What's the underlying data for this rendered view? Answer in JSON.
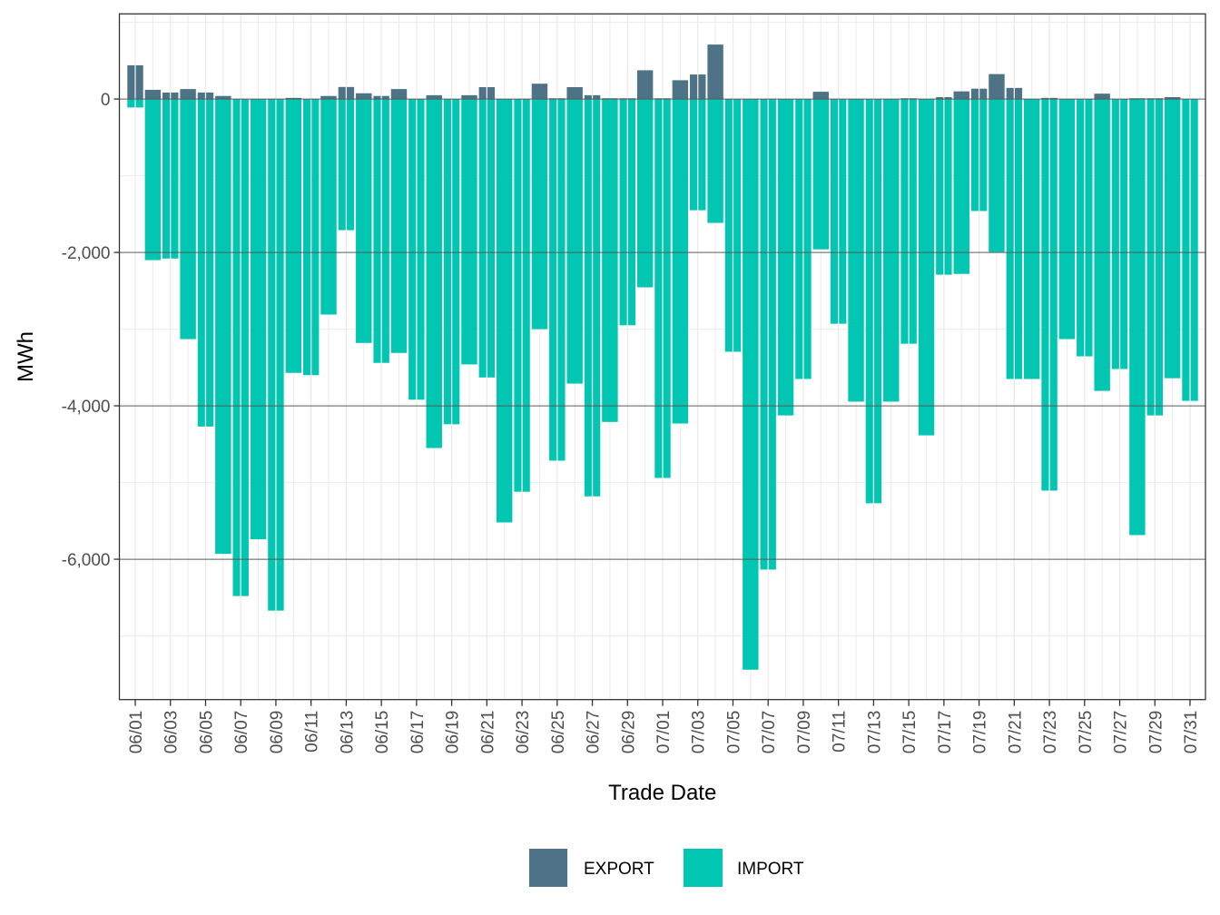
{
  "chart_data": {
    "type": "bar",
    "stacked": "diverging",
    "title": "",
    "xlabel": "Trade Date",
    "ylabel": "MWh",
    "ylim": [
      -7830,
      1110
    ],
    "yticks": [
      0,
      -2000,
      -4000,
      -6000
    ],
    "ytick_labels": [
      "0",
      "-2,000",
      "-4,000",
      "-6,000"
    ],
    "grid": true,
    "legend_position": "bottom",
    "categories": [
      "06/01",
      "06/02",
      "06/03",
      "06/04",
      "06/05",
      "06/06",
      "06/07",
      "06/08",
      "06/09",
      "06/10",
      "06/11",
      "06/12",
      "06/13",
      "06/14",
      "06/15",
      "06/16",
      "06/17",
      "06/18",
      "06/19",
      "06/20",
      "06/21",
      "06/22",
      "06/23",
      "06/24",
      "06/25",
      "06/26",
      "06/27",
      "06/28",
      "06/29",
      "06/30",
      "07/01",
      "07/02",
      "07/03",
      "07/04",
      "07/05",
      "07/06",
      "07/07",
      "07/08",
      "07/09",
      "07/10",
      "07/11",
      "07/12",
      "07/13",
      "07/14",
      "07/15",
      "07/16",
      "07/17",
      "07/18",
      "07/19",
      "07/20",
      "07/21",
      "07/22",
      "07/23",
      "07/24",
      "07/25",
      "07/26",
      "07/27",
      "07/28",
      "07/29",
      "07/30",
      "07/31"
    ],
    "xtick_labels": [
      "06/01",
      "06/03",
      "06/05",
      "06/07",
      "06/09",
      "06/11",
      "06/13",
      "06/15",
      "06/17",
      "06/19",
      "06/21",
      "06/23",
      "06/25",
      "06/27",
      "06/29",
      "07/01",
      "07/03",
      "07/05",
      "07/07",
      "07/09",
      "07/11",
      "07/13",
      "07/15",
      "07/17",
      "07/19",
      "07/21",
      "07/23",
      "07/25",
      "07/27",
      "07/29",
      "07/31"
    ],
    "series": [
      {
        "name": "EXPORT",
        "color": "#4e7386",
        "values": [
          440,
          120,
          85,
          130,
          85,
          40,
          0,
          0,
          0,
          15,
          0,
          40,
          157,
          75,
          40,
          130,
          0,
          50,
          0,
          50,
          155,
          0,
          0,
          200,
          10,
          155,
          50,
          10,
          10,
          375,
          10,
          245,
          320,
          710,
          0,
          0,
          0,
          0,
          0,
          95,
          0,
          0,
          0,
          0,
          10,
          0,
          25,
          100,
          135,
          325,
          145,
          0,
          15,
          0,
          0,
          70,
          0,
          10,
          10,
          25,
          0
        ]
      },
      {
        "name": "IMPORT",
        "color": "#00c6b2",
        "values": [
          -110,
          -2100,
          -2080,
          -3130,
          -4270,
          -5930,
          -6480,
          -5740,
          -6670,
          -3570,
          -3600,
          -2810,
          -1710,
          -3180,
          -3440,
          -3310,
          -3920,
          -4550,
          -4240,
          -3460,
          -3630,
          -5520,
          -5120,
          -3000,
          -4715,
          -3710,
          -5180,
          -4210,
          -2950,
          -2455,
          -4940,
          -4230,
          -1450,
          -1615,
          -3295,
          -7440,
          -6135,
          -4125,
          -3650,
          -1960,
          -2930,
          -3945,
          -5270,
          -3945,
          -3190,
          -4385,
          -2290,
          -2280,
          -1460,
          -1995,
          -3650,
          -3650,
          -5105,
          -3130,
          -3355,
          -3805,
          -3520,
          -5685,
          -4125,
          -3640,
          -3935
        ]
      }
    ]
  }
}
